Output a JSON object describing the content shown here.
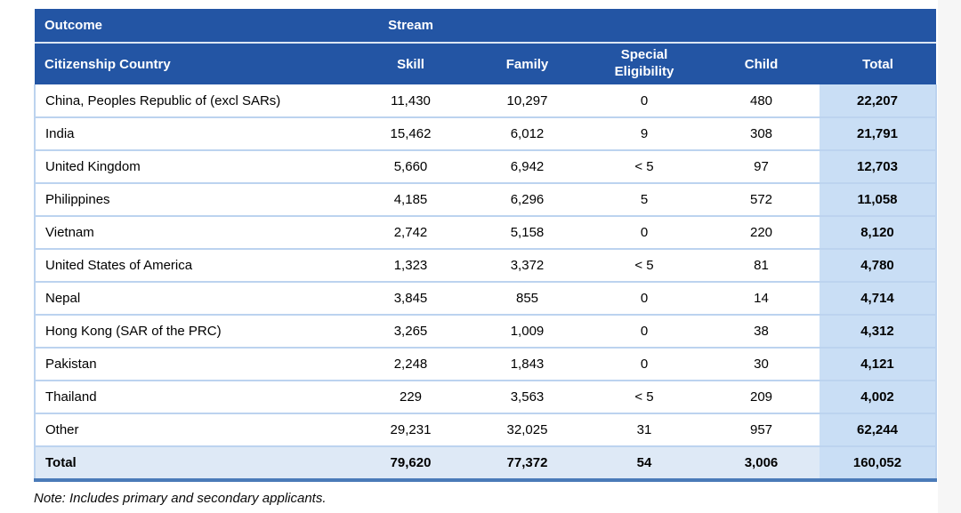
{
  "table": {
    "group_header": {
      "outcome": "Outcome",
      "stream": "Stream"
    },
    "columns": [
      "Citizenship Country",
      "Skill",
      "Family",
      "Special Eligibility",
      "Child",
      "Total"
    ],
    "rows": [
      [
        "China, Peoples Republic of (excl SARs)",
        "11,430",
        "10,297",
        "0",
        "480",
        "22,207"
      ],
      [
        "India",
        "15,462",
        "6,012",
        "9",
        "308",
        "21,791"
      ],
      [
        "United Kingdom",
        "5,660",
        "6,942",
        "< 5",
        "97",
        "12,703"
      ],
      [
        "Philippines",
        "4,185",
        "6,296",
        "5",
        "572",
        "11,058"
      ],
      [
        "Vietnam",
        "2,742",
        "5,158",
        "0",
        "220",
        "8,120"
      ],
      [
        "United States of America",
        "1,323",
        "3,372",
        "< 5",
        "81",
        "4,780"
      ],
      [
        "Nepal",
        "3,845",
        "855",
        "0",
        "14",
        "4,714"
      ],
      [
        "Hong Kong (SAR of the PRC)",
        "3,265",
        "1,009",
        "0",
        "38",
        "4,312"
      ],
      [
        "Pakistan",
        "2,248",
        "1,843",
        "0",
        "30",
        "4,121"
      ],
      [
        "Thailand",
        "229",
        "3,563",
        "< 5",
        "209",
        "4,002"
      ],
      [
        "Other",
        "29,231",
        "32,025",
        "31",
        "957",
        "62,244"
      ]
    ],
    "total_row": [
      "Total",
      "79,620",
      "77,372",
      "54",
      "3,006",
      "160,052"
    ]
  },
  "note": "Note: Includes primary and secondary applicants.",
  "colors": {
    "header_bg": "#2355a4",
    "header_text": "#ffffff",
    "row_divider": "#bcd3ef",
    "total_column_bg": "#c9def5",
    "total_row_bg": "#dee9f6",
    "bottom_border": "#4a7ab8"
  },
  "chart_data": {
    "type": "table",
    "title": "Outcome by Stream and Citizenship Country",
    "categories": [
      "China, Peoples Republic of (excl SARs)",
      "India",
      "United Kingdom",
      "Philippines",
      "Vietnam",
      "United States of America",
      "Nepal",
      "Hong Kong (SAR of the PRC)",
      "Pakistan",
      "Thailand",
      "Other",
      "Total"
    ],
    "series": [
      {
        "name": "Skill",
        "values": [
          "11,430",
          "15,462",
          "5,660",
          "4,185",
          "2,742",
          "1,323",
          "3,845",
          "3,265",
          "2,248",
          "229",
          "29,231",
          "79,620"
        ]
      },
      {
        "name": "Family",
        "values": [
          "10,297",
          "6,012",
          "6,942",
          "6,296",
          "5,158",
          "3,372",
          "855",
          "1,009",
          "1,843",
          "3,563",
          "32,025",
          "77,372"
        ]
      },
      {
        "name": "Special Eligibility",
        "values": [
          "0",
          "9",
          "< 5",
          "5",
          "0",
          "< 5",
          "0",
          "0",
          "0",
          "< 5",
          "31",
          "54"
        ]
      },
      {
        "name": "Child",
        "values": [
          "480",
          "308",
          "97",
          "572",
          "220",
          "81",
          "14",
          "38",
          "30",
          "209",
          "957",
          "3,006"
        ]
      },
      {
        "name": "Total",
        "values": [
          "22,207",
          "21,791",
          "12,703",
          "11,058",
          "8,120",
          "4,780",
          "4,714",
          "4,312",
          "4,121",
          "4,002",
          "62,244",
          "160,052"
        ]
      }
    ],
    "note": "Note: Includes primary and secondary applicants."
  }
}
